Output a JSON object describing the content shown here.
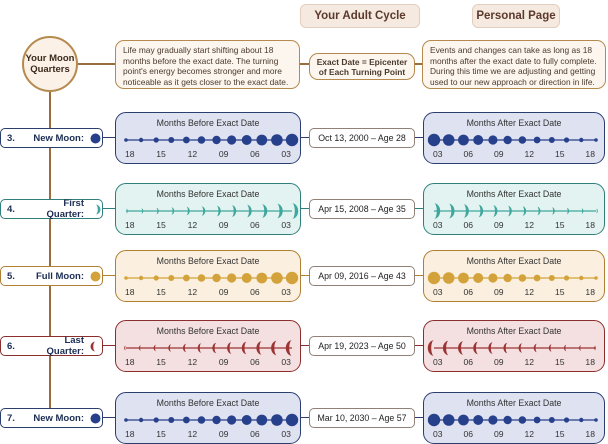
{
  "header": {
    "cycle_tab": "Your Adult Cycle",
    "personal_tab": "Personal Page"
  },
  "intro": {
    "circle_label": "Your Moon Quarters",
    "before_note": "Life may gradually start shifting about 18 months before the exact date. The turning point's energy becomes stronger and more noticeable as it gets closer to the exact date.",
    "epicenter_note": "Exact Date = Epicenter of Each Turning Point",
    "after_note": "Events and changes can take as long as 18 months after the exact date to fully complete. During this time we are adjusting and getting used to our new approach or direction in life."
  },
  "panel_titles": {
    "before": "Months Before Exact Date",
    "after": "Months After Exact Date"
  },
  "ticks_before": [
    "18",
    "15",
    "12",
    "09",
    "06",
    "03"
  ],
  "ticks_after": [
    "03",
    "06",
    "09",
    "12",
    "15",
    "18"
  ],
  "rows": [
    {
      "number": "3.",
      "name": "New Moon:",
      "phase": "new",
      "icon": "new-moon-icon",
      "date": "Oct 13, 2000 – Age 28",
      "border": "#2b3f6e",
      "fill": "#dfe2f1",
      "dot": "#27408b"
    },
    {
      "number": "4.",
      "name": "First Quarter:",
      "phase": "first",
      "icon": "first-quarter-moon-icon",
      "date": "Apr 15, 2008 – Age 35",
      "border": "#2f7f7c",
      "fill": "#e3f3f1",
      "dot": "#3fa79d"
    },
    {
      "number": "5.",
      "name": "Full Moon:",
      "phase": "full",
      "icon": "full-moon-icon",
      "date": "Apr 09, 2016 – Age 43",
      "border": "#b07f32",
      "fill": "#fbf0df",
      "dot": "#d4a23a"
    },
    {
      "number": "6.",
      "name": "Last Quarter:",
      "phase": "last",
      "icon": "last-quarter-moon-icon",
      "date": "Apr 19, 2023 – Age 50",
      "border": "#8a2e2e",
      "fill": "#f4e0e0",
      "dot": "#9c3434"
    },
    {
      "number": "7.",
      "name": "New Moon:",
      "phase": "new",
      "icon": "new-moon-icon",
      "date": "Mar 10, 2030 – Age 57",
      "border": "#2b3f6e",
      "fill": "#dfe2f1",
      "dot": "#27408b"
    }
  ]
}
